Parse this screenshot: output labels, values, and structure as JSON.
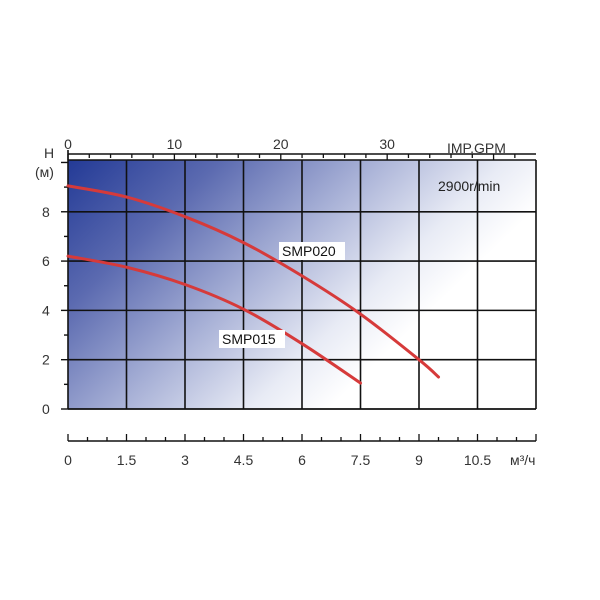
{
  "chart_data": {
    "type": "line",
    "ylabel": "H",
    "yunit": "(м)",
    "x_top_label": "IMP.GPM",
    "x_bottom_label": "м³/ч",
    "annotation": "2900r/min",
    "y_ticks": [
      "0",
      "2",
      "4",
      "6",
      "8"
    ],
    "x_top_ticks": [
      "0",
      "10",
      "20",
      "30"
    ],
    "x_bottom_ticks": [
      "0",
      "1.5",
      "3",
      "4.5",
      "6",
      "7.5",
      "9",
      "10.5"
    ],
    "ylim": [
      0,
      10.1
    ],
    "xlim_bottom": [
      0,
      12
    ],
    "grid": true,
    "series": [
      {
        "name": "SMP020",
        "color": "#d63a3a",
        "x": [
          0,
          1.5,
          3,
          4.5,
          6,
          7.5,
          9,
          9.5
        ],
        "y": [
          9.05,
          8.6,
          7.8,
          6.75,
          5.4,
          3.85,
          2.0,
          1.3
        ]
      },
      {
        "name": "SMP015",
        "color": "#d63a3a",
        "x": [
          0,
          1.5,
          3,
          4.5,
          6,
          7.5
        ],
        "y": [
          6.2,
          5.75,
          5.05,
          4.05,
          2.65,
          1.05
        ]
      }
    ]
  }
}
